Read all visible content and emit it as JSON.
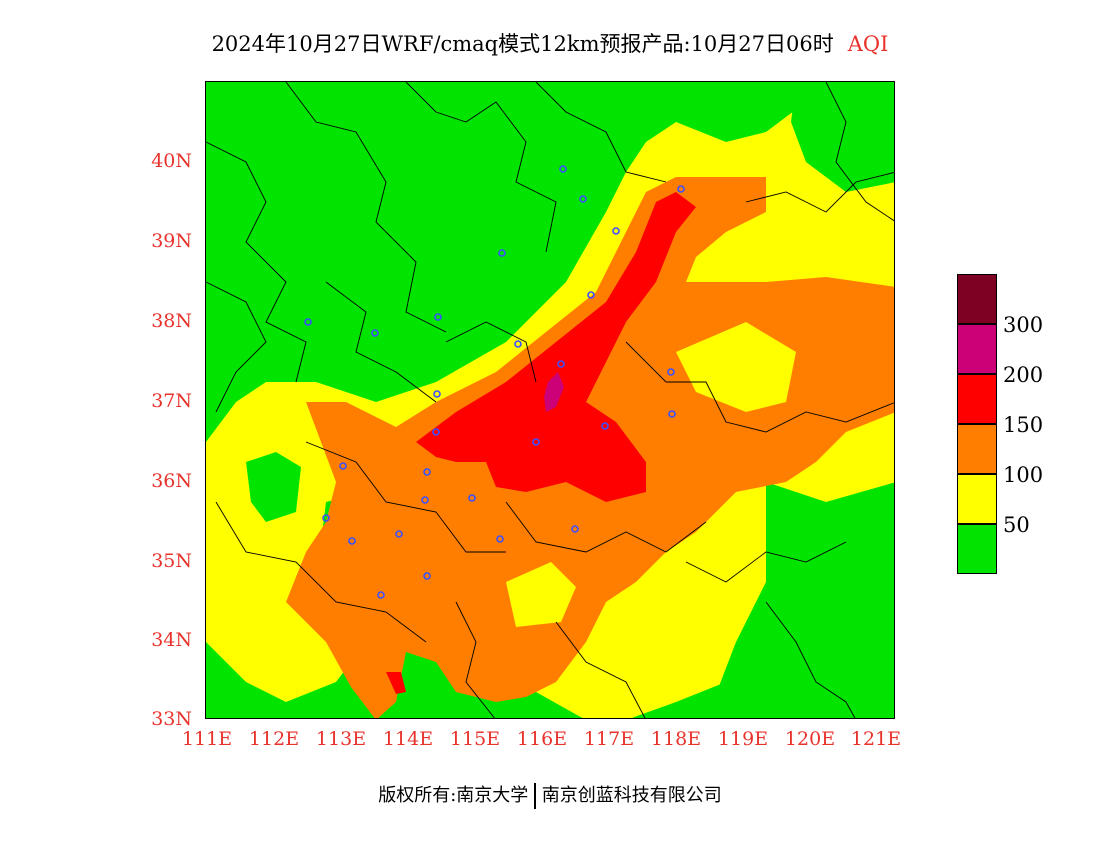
{
  "title": {
    "main": "2024年10月27日WRF/cmaq模式12km预报产品:10月27日06时",
    "product": "AQI"
  },
  "colors": {
    "good": "#00e400",
    "moderate": "#ffff00",
    "usg": "#ff7e00",
    "unhealthy": "#ff0000",
    "very_unhealthy": "#cc0077",
    "hazardous": "#7e0023",
    "axis_label": "#e8322c",
    "station": "#3c50ff"
  },
  "axes": {
    "lon_labels": [
      "111E",
      "112E",
      "113E",
      "114E",
      "115E",
      "116E",
      "117E",
      "118E",
      "119E",
      "120E",
      "121E"
    ],
    "lat_labels": [
      "40N",
      "39N",
      "38N",
      "37N",
      "36N",
      "35N",
      "34N",
      "33N"
    ]
  },
  "legend": {
    "ticks": [
      "300",
      "200",
      "150",
      "100",
      "50"
    ],
    "colors": [
      "#7e0023",
      "#cc0077",
      "#ff0000",
      "#ff7e00",
      "#ffff00",
      "#00e400"
    ]
  },
  "credit": {
    "left": "版权所有:南京大学",
    "right": "南京创蓝科技有限公司"
  }
}
